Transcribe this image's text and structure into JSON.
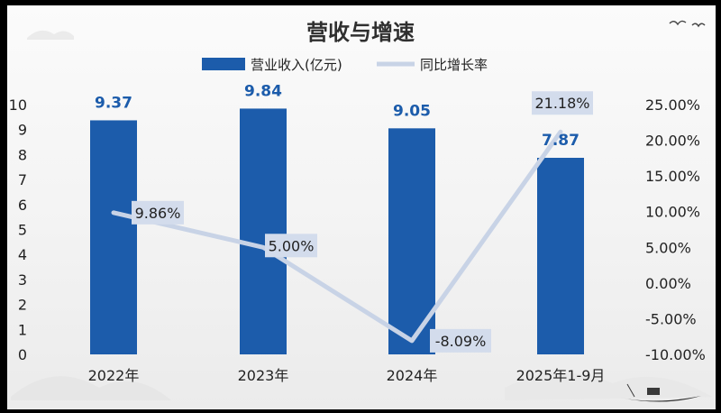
{
  "chart_data": {
    "type": "bar+line",
    "title": "营收与增速",
    "categories": [
      "2022年",
      "2023年",
      "2024年",
      "2025年1-9月"
    ],
    "series": [
      {
        "name": "营业收入(亿元)",
        "type": "bar",
        "axis": "left",
        "values": [
          9.37,
          9.84,
          9.05,
          7.87
        ],
        "labels": [
          "9.37",
          "9.84",
          "9.05",
          "7.87"
        ]
      },
      {
        "name": "同比增长率",
        "type": "line",
        "axis": "right",
        "values": [
          9.86,
          5.0,
          -8.09,
          21.18
        ],
        "labels": [
          "9.86%",
          "5.00%",
          "-8.09%",
          "21.18%"
        ]
      }
    ],
    "y_left": {
      "min": 0,
      "max": 10,
      "step": 1,
      "ticks": [
        "0",
        "1",
        "2",
        "3",
        "4",
        "5",
        "6",
        "7",
        "8",
        "9",
        "10"
      ]
    },
    "y_right": {
      "min": -10,
      "max": 25,
      "step": 5,
      "ticks": [
        "-10.00%",
        "-5.00%",
        "0.00%",
        "5.00%",
        "10.00%",
        "15.00%",
        "20.00%",
        "25.00%"
      ]
    },
    "legend_position": "top-center",
    "grid": false
  },
  "colors": {
    "bar": "#1c5cab",
    "line": "#c8d3e6",
    "label_box": "#d3dcec",
    "value_label": "#1c5cab"
  }
}
